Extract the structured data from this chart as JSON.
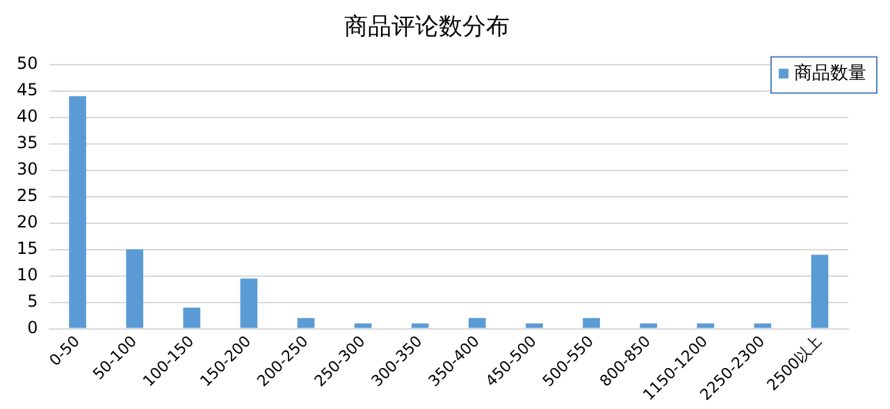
{
  "chart_data": {
    "type": "bar",
    "title": "商品评论数分布",
    "categories": [
      "0-50",
      "50-100",
      "100-150",
      "150-200",
      "200-250",
      "250-300",
      "300-350",
      "350-400",
      "450-500",
      "500-550",
      "800-850",
      "1150-1200",
      "2250-2300",
      "2500以上"
    ],
    "series": [
      {
        "name": "商品数量",
        "color": "#5b9bd5",
        "values": [
          44,
          15,
          4,
          9.5,
          2,
          1,
          1,
          2,
          1,
          2,
          1,
          1,
          1,
          14
        ]
      }
    ],
    "ylim": [
      0,
      50
    ],
    "yticks": [
      0,
      5,
      10,
      15,
      20,
      25,
      30,
      35,
      40,
      45,
      50
    ],
    "grid": "y",
    "legend": "top right"
  }
}
